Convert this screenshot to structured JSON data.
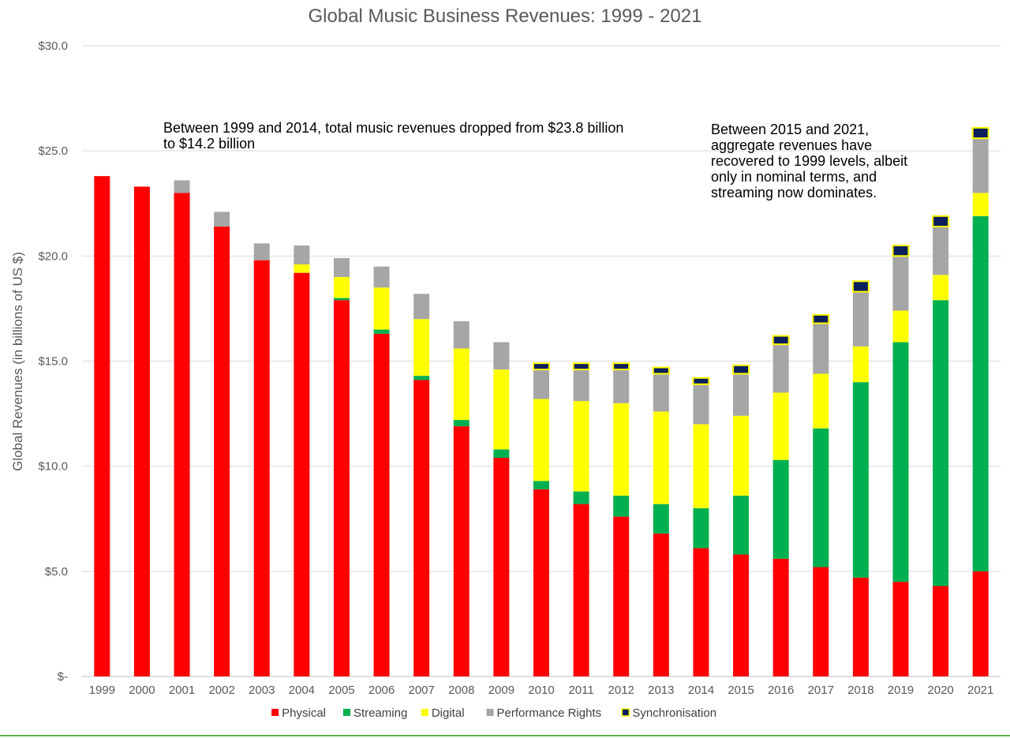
{
  "chart_data": {
    "type": "bar",
    "stacked": true,
    "title": "Global Music Business Revenues: 1999 - 2021",
    "xlabel": "",
    "ylabel": "Global Revenues (in billions of US $)",
    "ylim": [
      0,
      30
    ],
    "yticks": [
      0,
      5,
      10,
      15,
      20,
      25,
      30
    ],
    "ytick_labels": [
      "$-",
      "$5.0",
      "$10.0",
      "$15.0",
      "$20.0",
      "$25.0",
      "$30.0"
    ],
    "grid": true,
    "legend_position": "bottom",
    "categories": [
      "1999",
      "2000",
      "2001",
      "2002",
      "2003",
      "2004",
      "2005",
      "2006",
      "2007",
      "2008",
      "2009",
      "2010",
      "2011",
      "2012",
      "2013",
      "2014",
      "2015",
      "2016",
      "2017",
      "2018",
      "2019",
      "2020",
      "2021"
    ],
    "series": [
      {
        "name": "Physical",
        "color": "#ff0000",
        "values": [
          23.8,
          23.3,
          23.0,
          21.4,
          19.8,
          19.2,
          17.9,
          16.3,
          14.1,
          11.9,
          10.4,
          8.9,
          8.2,
          7.6,
          6.8,
          6.1,
          5.8,
          5.6,
          5.2,
          4.7,
          4.5,
          4.3,
          5.0
        ]
      },
      {
        "name": "Streaming",
        "color": "#00b050",
        "values": [
          0,
          0,
          0,
          0,
          0,
          0,
          0.1,
          0.2,
          0.2,
          0.3,
          0.4,
          0.4,
          0.6,
          1.0,
          1.4,
          1.9,
          2.8,
          4.7,
          6.6,
          9.3,
          11.4,
          13.6,
          16.9
        ]
      },
      {
        "name": "Digital",
        "color": "#ffff00",
        "values": [
          0,
          0,
          0,
          0,
          0,
          0.4,
          1.0,
          2.0,
          2.7,
          3.4,
          3.8,
          3.9,
          4.3,
          4.4,
          4.4,
          4.0,
          3.8,
          3.2,
          2.6,
          1.7,
          1.5,
          1.2,
          1.1
        ]
      },
      {
        "name": "Performance Rights",
        "color": "#a6a6a6",
        "values": [
          0,
          0,
          0.6,
          0.7,
          0.8,
          0.9,
          0.9,
          1.0,
          1.2,
          1.3,
          1.3,
          1.4,
          1.5,
          1.6,
          1.8,
          1.9,
          2.0,
          2.3,
          2.4,
          2.6,
          2.6,
          2.3,
          2.6
        ]
      },
      {
        "name": "Synchronisation",
        "color": "#0b1f5c",
        "edge": "#ffff00",
        "values": [
          0,
          0,
          0,
          0,
          0,
          0,
          0,
          0,
          0,
          0,
          0,
          0.3,
          0.3,
          0.3,
          0.3,
          0.3,
          0.4,
          0.4,
          0.4,
          0.5,
          0.5,
          0.5,
          0.5
        ]
      }
    ],
    "annotations": [
      "Between 1999 and 2014, total music revenues dropped from $23.8 billion to $14.2 billion",
      "Between 2015 and 2021, aggregate revenues have recovered to 1999 levels, albeit only in nominal terms, and streaming now dominates."
    ]
  }
}
